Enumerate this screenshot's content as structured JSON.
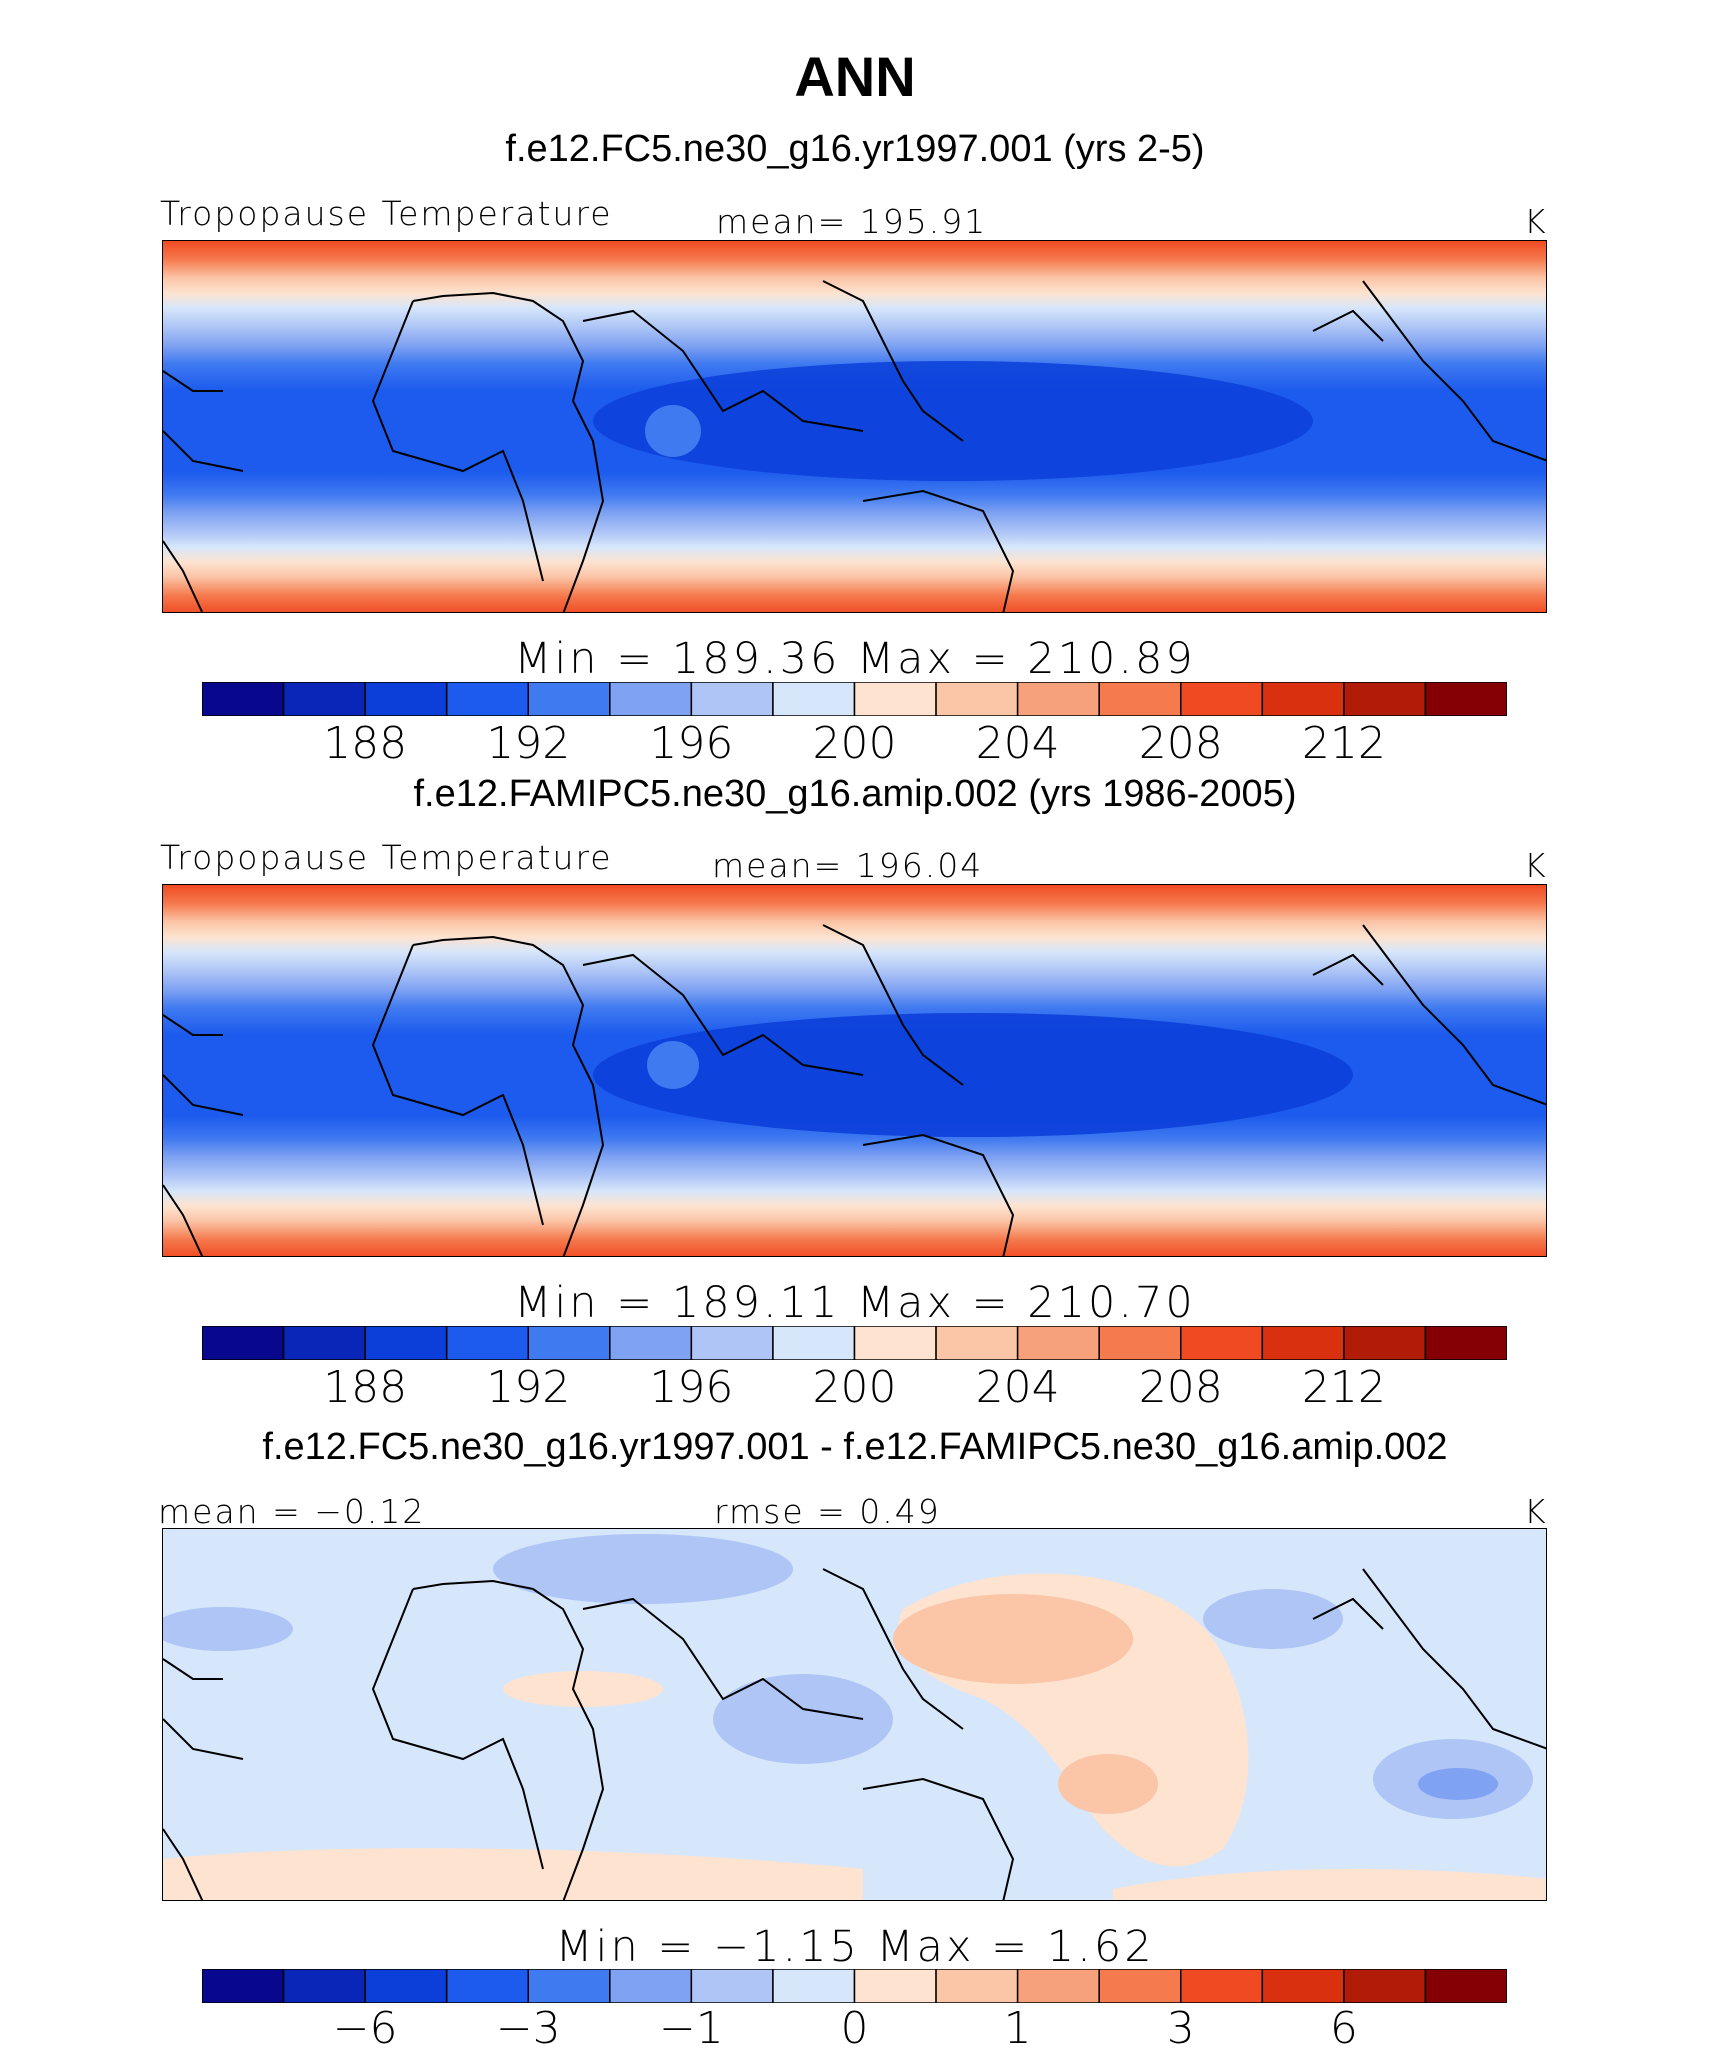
{
  "title": "ANN",
  "panels": [
    {
      "case_title": "f.e12.FC5.ne30_g16.yr1997.001 (yrs 2-5)",
      "left_label": "Tropopause Temperature",
      "mid_label": "mean=  195.91",
      "unit": "K",
      "stats": "Min  =  189.36  Max  =  210.89",
      "ticks": [
        "188",
        "192",
        "196",
        "200",
        "204",
        "208",
        "212"
      ]
    },
    {
      "case_title": "f.e12.FAMIPC5.ne30_g16.amip.002 (yrs 1986-2005)",
      "left_label": "Tropopause Temperature",
      "mid_label": "mean=  196.04",
      "unit": "K",
      "stats": "Min  =  189.11  Max  =  210.70",
      "ticks": [
        "188",
        "192",
        "196",
        "200",
        "204",
        "208",
        "212"
      ]
    },
    {
      "case_title": "f.e12.FC5.ne30_g16.yr1997.001 - f.e12.FAMIPC5.ne30_g16.amip.002",
      "left_label": "mean  =  −0.12",
      "mid_label": "rmse  =     0.49",
      "unit": "K",
      "stats": "Min  =    −1.15  Max  =     1.62",
      "ticks": [
        "−6",
        "−3",
        "−1",
        "0",
        "1",
        "3",
        "6"
      ]
    }
  ],
  "colorbar_colors": [
    "#08088f",
    "#0a26b8",
    "#0c3fd9",
    "#1d5bee",
    "#3f7af0",
    "#7fa2f2",
    "#aec5f6",
    "#d6e6fb",
    "#fde3d0",
    "#fbc5a8",
    "#f7a07c",
    "#f57a4e",
    "#f04a22",
    "#d93010",
    "#b01c08",
    "#850005"
  ]
}
